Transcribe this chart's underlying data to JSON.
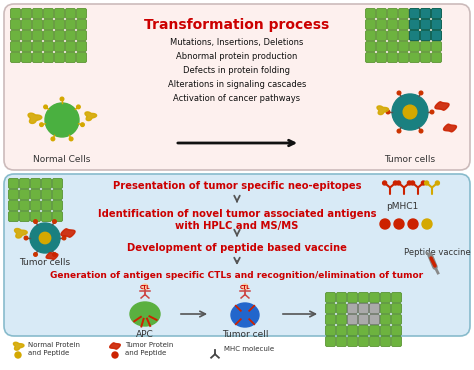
{
  "title": "Transformation process",
  "title_color": "#cc0000",
  "top_bg": "#fdf0ee",
  "bottom_bg": "#d8eaf6",
  "transformation_lines": [
    "Mutations, Insertions, Deletions",
    "Abnormal protein production",
    "Defects in protein folding",
    "Alterations in signaling cascades",
    "Activation of cancer pathways"
  ],
  "normal_cells_label": "Normal Cells",
  "tumor_cells_label": "Tumor cells",
  "step1": "Presentation of tumor specific neo-epitopes",
  "step2": "Identification of novel tumor associated antigens\nwith HPLC and MS/MS",
  "step3": "Development of peptide based vaccine",
  "step4": "Generation of antigen specific CTLs and recognition/elimination of tumor",
  "pmhc1_label": "pMHC1",
  "peptide_vaccine_label": "Peptide vaccine",
  "apc_label": "APC",
  "tumor_cell_label": "Tumor cell",
  "legend_normal": "Normal Protein\nand Peptide",
  "legend_tumor": "Tumor Protein\nand Peptide",
  "legend_mhc": "MHC molecule",
  "step_color": "#cc0000",
  "cell_green": "#6db33f",
  "cell_teal": "#1a7f7f",
  "cell_border_green": "#4a8820",
  "cell_border_teal": "#005555",
  "virus_green": "#4ab040",
  "virus_teal": "#1a8080",
  "protein_yellow": "#d4a800",
  "protein_red": "#cc2200",
  "apc_green": "#5ab040",
  "tumor_blue": "#2266cc",
  "gray_cell": "#aaaaaa"
}
